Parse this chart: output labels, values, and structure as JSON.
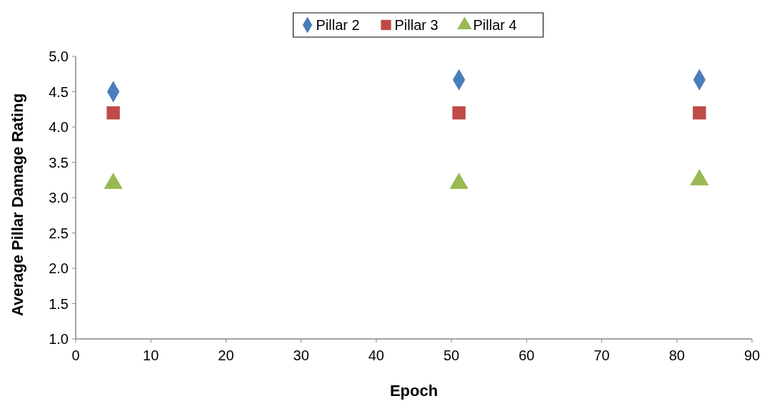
{
  "chart_data": {
    "type": "scatter",
    "xlabel": "Epoch",
    "ylabel": "Average Pillar Damage Rating",
    "x": [
      5,
      51,
      83
    ],
    "series": [
      {
        "name": "Pillar 2",
        "color": "#4a7ebb",
        "marker": "diamond",
        "values": [
          4.5,
          4.67,
          4.67
        ]
      },
      {
        "name": "Pillar 3",
        "color": "#be4b48",
        "marker": "square",
        "values": [
          4.2,
          4.2,
          4.2
        ]
      },
      {
        "name": "Pillar 4",
        "color": "#98b954",
        "marker": "triangle",
        "values": [
          3.2,
          3.2,
          3.25
        ]
      }
    ],
    "xlim": [
      0,
      90
    ],
    "xticks": [
      0,
      10,
      20,
      30,
      40,
      50,
      60,
      70,
      80,
      90
    ],
    "ylim": [
      1,
      5
    ],
    "yticks": [
      {
        "value": 1,
        "label": "1.0"
      },
      {
        "value": 1.5,
        "label": "1.5"
      },
      {
        "value": 2,
        "label": "2.0"
      },
      {
        "value": 2.5,
        "label": "2.5"
      },
      {
        "value": 3,
        "label": "3.0"
      },
      {
        "value": 3.5,
        "label": "3.5"
      },
      {
        "value": 4,
        "label": "4.0"
      },
      {
        "value": 4.5,
        "label": "4.5"
      },
      {
        "value": 5,
        "label": "5.0"
      }
    ],
    "grid": false,
    "legend": "top"
  }
}
